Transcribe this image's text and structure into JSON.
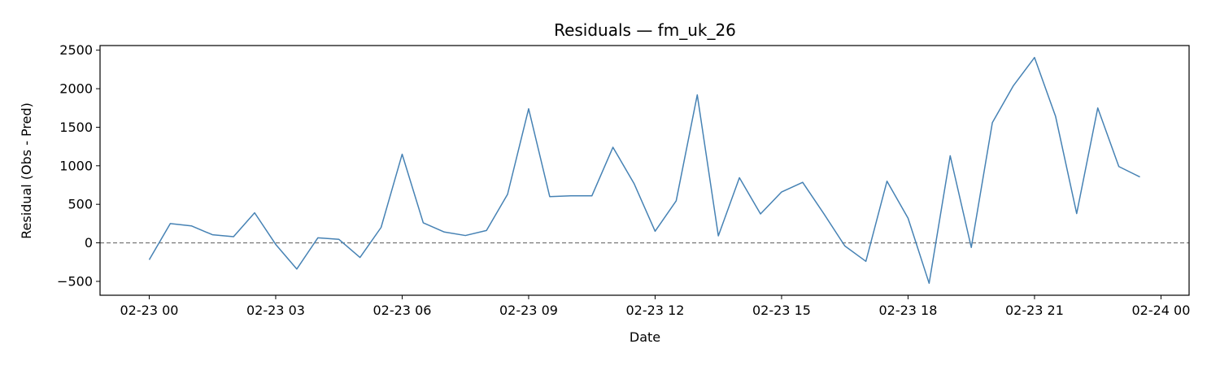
{
  "chart_data": {
    "type": "line",
    "title": "Residuals — fm_uk_26",
    "xlabel": "Date",
    "ylabel": "Residual (Obs - Pred)",
    "x_ticks": [
      "02-23 00",
      "02-23 03",
      "02-23 06",
      "02-23 09",
      "02-23 12",
      "02-23 15",
      "02-23 18",
      "02-23 21",
      "02-24 00"
    ],
    "y_ticks": [
      "−500",
      "0",
      "500",
      "1000",
      "1500",
      "2000",
      "2500"
    ],
    "xlim": [
      "2023-02-22 22:50",
      "2023-02-24 00:40"
    ],
    "ylim": [
      -680,
      2560
    ],
    "grid": false,
    "reference_line": {
      "y": 0,
      "style": "dashed",
      "color": "#808080"
    },
    "series": [
      {
        "color": "#4682b4",
        "x": [
          "2023-02-23 00:00",
          "2023-02-23 00:30",
          "2023-02-23 01:00",
          "2023-02-23 01:30",
          "2023-02-23 02:00",
          "2023-02-23 02:30",
          "2023-02-23 03:00",
          "2023-02-23 03:30",
          "2023-02-23 04:00",
          "2023-02-23 04:30",
          "2023-02-23 05:00",
          "2023-02-23 05:30",
          "2023-02-23 06:00",
          "2023-02-23 06:30",
          "2023-02-23 07:00",
          "2023-02-23 07:30",
          "2023-02-23 08:00",
          "2023-02-23 08:30",
          "2023-02-23 09:00",
          "2023-02-23 09:30",
          "2023-02-23 10:00",
          "2023-02-23 10:30",
          "2023-02-23 11:00",
          "2023-02-23 11:30",
          "2023-02-23 12:00",
          "2023-02-23 12:30",
          "2023-02-23 13:00",
          "2023-02-23 13:30",
          "2023-02-23 14:00",
          "2023-02-23 14:30",
          "2023-02-23 15:00",
          "2023-02-23 15:30",
          "2023-02-23 16:00",
          "2023-02-23 16:30",
          "2023-02-23 17:00",
          "2023-02-23 17:30",
          "2023-02-23 18:00",
          "2023-02-23 18:30",
          "2023-02-23 19:00",
          "2023-02-23 19:30",
          "2023-02-23 20:00",
          "2023-02-23 20:30",
          "2023-02-23 21:00",
          "2023-02-23 21:30",
          "2023-02-23 22:00",
          "2023-02-23 22:30",
          "2023-02-23 23:00",
          "2023-02-23 23:30"
        ],
        "values": [
          -220,
          250,
          220,
          105,
          80,
          390,
          -20,
          -340,
          65,
          45,
          -190,
          200,
          1150,
          260,
          140,
          95,
          160,
          630,
          1740,
          600,
          610,
          610,
          1240,
          770,
          150,
          545,
          1920,
          90,
          845,
          375,
          660,
          785,
          380,
          -40,
          -240,
          800,
          320,
          -525,
          1130,
          -60,
          1560,
          2040,
          2405,
          1640,
          380,
          1750,
          990,
          855
        ]
      }
    ]
  }
}
